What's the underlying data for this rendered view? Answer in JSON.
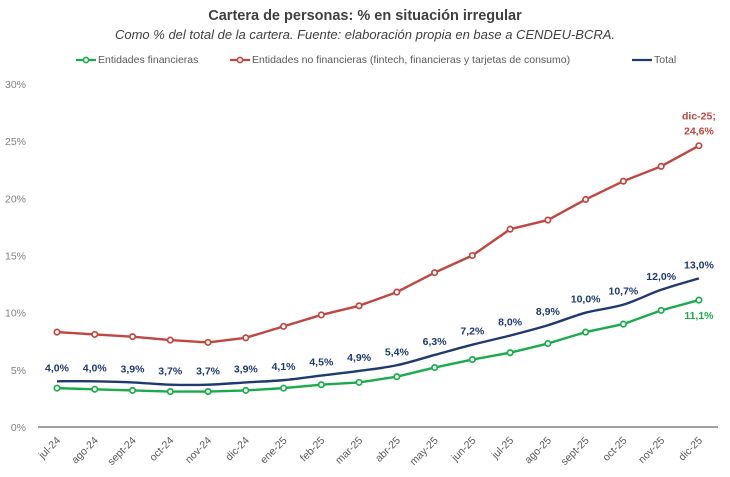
{
  "chart_data": {
    "type": "line",
    "title": "Cartera de personas: % en situación irregular",
    "subtitle": "Como % del total de la cartera. Fuente: elaboración propia en base a CENDEU-BCRA.",
    "xlabel": "",
    "ylabel": "",
    "ylim": [
      0,
      30
    ],
    "yticks": [
      0,
      5,
      10,
      15,
      20,
      25,
      30
    ],
    "ytick_labels": [
      "0%",
      "5%",
      "10%",
      "15%",
      "20%",
      "25%",
      "30%"
    ],
    "grid": false,
    "legend_position": "top",
    "categories": [
      "jul-24",
      "ago-24",
      "sept-24",
      "oct-24",
      "nov-24",
      "dic-24",
      "ene-25",
      "feb-25",
      "mar-25",
      "abr-25",
      "may-25",
      "jun-25",
      "jul-25",
      "ago-25",
      "sept-25",
      "oct-25",
      "nov-25",
      "dic-25"
    ],
    "series": [
      {
        "name": "Entidades financieras",
        "color": "#1aab4b",
        "markers": true,
        "values": [
          3.4,
          3.3,
          3.2,
          3.1,
          3.1,
          3.2,
          3.4,
          3.7,
          3.9,
          4.4,
          5.2,
          5.9,
          6.5,
          7.3,
          8.3,
          9.0,
          10.2,
          11.1
        ],
        "labels": {
          "17": "11,1%"
        }
      },
      {
        "name": "Entidades no financieras (fintech, financieras y tarjetas de consumo)",
        "color": "#c0463f",
        "markers": true,
        "values": [
          8.3,
          8.1,
          7.9,
          7.6,
          7.4,
          7.8,
          8.8,
          9.8,
          10.6,
          11.8,
          13.5,
          15.0,
          17.3,
          18.1,
          19.9,
          21.5,
          22.8,
          24.6
        ],
        "labels": {
          "17": [
            "dic-25;",
            "24,6%"
          ]
        }
      },
      {
        "name": "Total",
        "color": "#1f3a70",
        "markers": false,
        "values": [
          4.0,
          4.0,
          3.9,
          3.7,
          3.7,
          3.9,
          4.1,
          4.5,
          4.9,
          5.4,
          6.3,
          7.2,
          8.0,
          8.9,
          10.0,
          10.7,
          12.0,
          13.0
        ],
        "labels": {
          "0": "4,0%",
          "1": "4,0%",
          "2": "3,9%",
          "3": "3,7%",
          "4": "3,7%",
          "5": "3,9%",
          "6": "4,1%",
          "7": "4,5%",
          "8": "4,9%",
          "9": "5,4%",
          "10": "6,3%",
          "11": "7,2%",
          "12": "8,0%",
          "13": "8,9%",
          "14": "10,0%",
          "15": "10,7%",
          "16": "12,0%",
          "17": "13,0%"
        }
      }
    ]
  }
}
